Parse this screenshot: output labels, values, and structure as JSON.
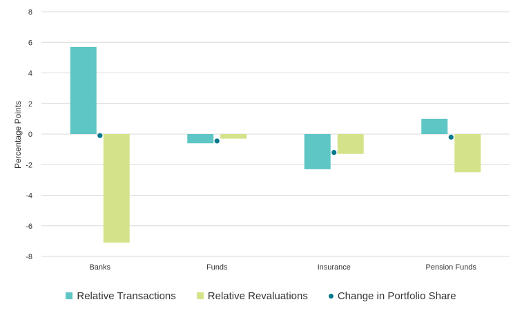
{
  "chart_data": {
    "type": "bar",
    "categories": [
      "Banks",
      "Funds",
      "Insurance",
      "Pension Funds"
    ],
    "series": [
      {
        "name": "Relative Transactions",
        "kind": "bar",
        "color": "#5ec6c4",
        "values": [
          5.7,
          -0.6,
          -2.3,
          1.0
        ]
      },
      {
        "name": "Relative Revaluations",
        "kind": "bar",
        "color": "#d4e38a",
        "values": [
          -7.1,
          -0.3,
          -1.3,
          -2.5
        ]
      },
      {
        "name": "Change in Portfolio Share",
        "kind": "point",
        "color": "#00778b",
        "values": [
          -0.1,
          -0.45,
          -1.2,
          -0.2
        ]
      }
    ],
    "title": "",
    "xlabel": "",
    "ylabel": "Percentage Points",
    "ylim": [
      -8,
      8
    ],
    "yticks": [
      8,
      6,
      4,
      2,
      0,
      -2,
      -4,
      -6,
      -8
    ],
    "grid": true,
    "legend_position": "bottom"
  }
}
